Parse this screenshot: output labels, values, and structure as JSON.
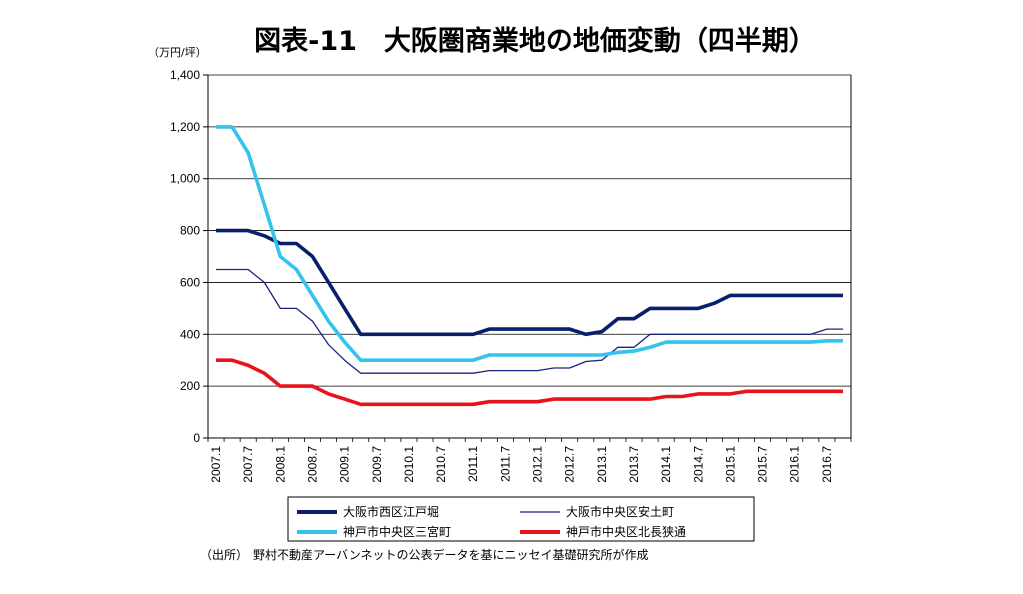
{
  "title": "図表-11　大阪圏商業地の地価変動（四半期）",
  "source_label": "（出所）",
  "source_text": "野村不動産アーバンネットの公表データを基にニッセイ基礎研究所が作成",
  "chart_data": {
    "type": "line",
    "title": "図表-11　大阪圏商業地の地価変動（四半期）",
    "ylabel": "（万円/坪）",
    "xlabel": "",
    "ylim": [
      0,
      1400
    ],
    "yticks": [
      0,
      200,
      400,
      600,
      800,
      1000,
      1200,
      1400
    ],
    "ytick_labels": [
      "0",
      "200",
      "400",
      "600",
      "800",
      "1,000",
      "1,200",
      "1,400"
    ],
    "grid": "horizontal",
    "legend_position": "bottom",
    "x": [
      "2007.1",
      "2007.4",
      "2007.7",
      "2007.10",
      "2008.1",
      "2008.4",
      "2008.7",
      "2008.10",
      "2009.1",
      "2009.4",
      "2009.7",
      "2009.10",
      "2010.1",
      "2010.4",
      "2010.7",
      "2010.10",
      "2011.1",
      "2011.4",
      "2011.7",
      "2011.10",
      "2012.1",
      "2012.4",
      "2012.7",
      "2012.10",
      "2013.1",
      "2013.4",
      "2013.7",
      "2013.10",
      "2014.1",
      "2014.4",
      "2014.7",
      "2014.10",
      "2015.1",
      "2015.4",
      "2015.7",
      "2015.10",
      "2016.1",
      "2016.4",
      "2016.7",
      "2016.10"
    ],
    "xtick_labels": [
      "2007.1",
      "2007.7",
      "2008.1",
      "2008.7",
      "2009.1",
      "2009.7",
      "2010.1",
      "2010.7",
      "2011.1",
      "2011.7",
      "2012.1",
      "2012.7",
      "2013.1",
      "2013.7",
      "2014.1",
      "2014.7",
      "2015.1",
      "2015.7",
      "2016.1",
      "2016.7"
    ],
    "series": [
      {
        "name": "大阪市西区江戸堀",
        "color": "#0a1f6b",
        "width": "thick",
        "values": [
          800,
          800,
          800,
          780,
          750,
          750,
          700,
          600,
          500,
          400,
          400,
          400,
          400,
          400,
          400,
          400,
          400,
          420,
          420,
          420,
          420,
          420,
          420,
          400,
          410,
          460,
          460,
          500,
          500,
          500,
          500,
          520,
          550,
          550,
          550,
          550,
          550,
          550,
          550,
          550
        ]
      },
      {
        "name": "大阪市中央区安土町",
        "color": "#1a237e",
        "width": "thin",
        "values": [
          650,
          650,
          650,
          600,
          500,
          500,
          450,
          360,
          300,
          250,
          250,
          250,
          250,
          250,
          250,
          250,
          250,
          260,
          260,
          260,
          260,
          270,
          270,
          295,
          300,
          350,
          350,
          400,
          400,
          400,
          400,
          400,
          400,
          400,
          400,
          400,
          400,
          400,
          420,
          420
        ]
      },
      {
        "name": "神戸市中央区三宮町",
        "color": "#33c3ec",
        "width": "thick",
        "values": [
          1200,
          1200,
          1100,
          900,
          700,
          650,
          550,
          450,
          370,
          300,
          300,
          300,
          300,
          300,
          300,
          300,
          300,
          320,
          320,
          320,
          320,
          320,
          320,
          320,
          320,
          330,
          335,
          350,
          370,
          370,
          370,
          370,
          370,
          370,
          370,
          370,
          370,
          370,
          375,
          375
        ]
      },
      {
        "name": "神戸市中央区北長狭通",
        "color": "#e8141b",
        "width": "thick",
        "values": [
          300,
          300,
          280,
          250,
          200,
          200,
          200,
          170,
          150,
          130,
          130,
          130,
          130,
          130,
          130,
          130,
          130,
          140,
          140,
          140,
          140,
          150,
          150,
          150,
          150,
          150,
          150,
          150,
          160,
          160,
          170,
          170,
          170,
          180,
          180,
          180,
          180,
          180,
          180,
          180
        ]
      }
    ]
  }
}
